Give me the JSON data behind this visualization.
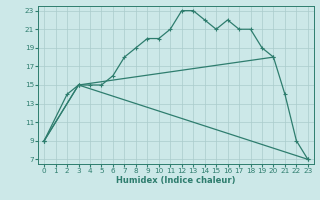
{
  "xlabel": "Humidex (Indice chaleur)",
  "bg_color": "#cce8e8",
  "grid_color": "#aacccc",
  "line_color": "#2e7d6e",
  "xlim": [
    -0.5,
    23.5
  ],
  "ylim": [
    6.5,
    23.5
  ],
  "xticks": [
    0,
    1,
    2,
    3,
    4,
    5,
    6,
    7,
    8,
    9,
    10,
    11,
    12,
    13,
    14,
    15,
    16,
    17,
    18,
    19,
    20,
    21,
    22,
    23
  ],
  "yticks": [
    7,
    9,
    11,
    13,
    15,
    17,
    19,
    21,
    23
  ],
  "line1": {
    "x": [
      0,
      2,
      3,
      4,
      5,
      6,
      7,
      8,
      9,
      10,
      11,
      12,
      13,
      14,
      15,
      16,
      17,
      18,
      19,
      20,
      21,
      22,
      23
    ],
    "y": [
      9,
      14,
      15,
      15,
      15,
      16,
      18,
      19,
      20,
      20,
      21,
      23,
      23,
      22,
      21,
      22,
      21,
      21,
      19,
      18,
      14,
      9,
      7
    ]
  },
  "line2": {
    "x": [
      0,
      3,
      20
    ],
    "y": [
      9,
      15,
      18
    ]
  },
  "line3": {
    "x": [
      0,
      3,
      23
    ],
    "y": [
      9,
      15,
      7
    ]
  }
}
